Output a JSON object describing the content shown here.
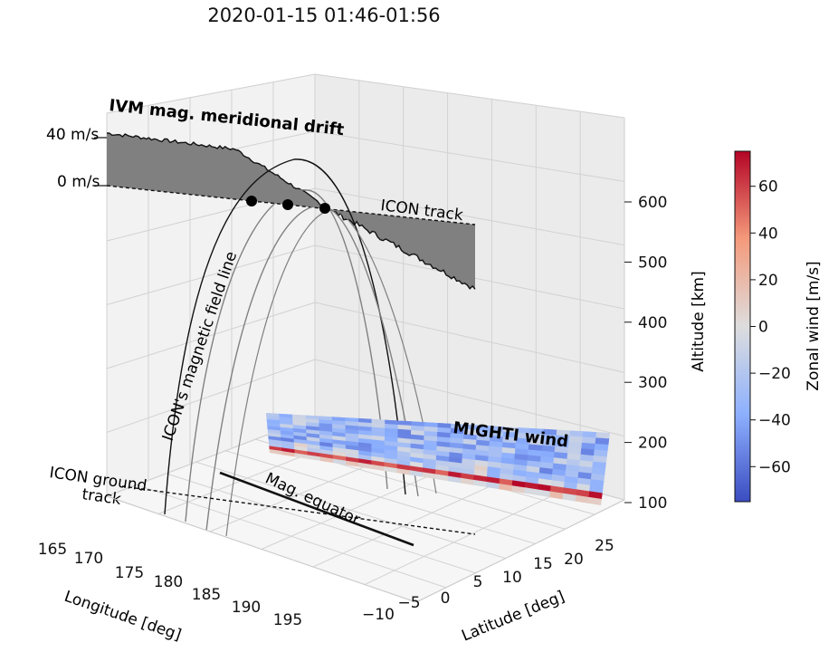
{
  "title": "2020-01-15  01:46-01:56",
  "chart_data": {
    "type": "3d-line",
    "title": "2020-01-15  01:46-01:56",
    "axes": {
      "longitude": {
        "label": "Longitude [deg]",
        "ticks": [
          "165",
          "170",
          "175",
          "180",
          "185",
          "190",
          "195"
        ],
        "range": [
          165,
          195
        ]
      },
      "latitude": {
        "label": "Latitude [deg]",
        "ticks": [
          "−10",
          "−5",
          "0",
          "5",
          "10",
          "15",
          "20",
          "25"
        ],
        "range": [
          -12,
          28
        ]
      },
      "altitude": {
        "label": "Altitude [km]",
        "ticks": [
          "100",
          "200",
          "300",
          "400",
          "500",
          "600"
        ],
        "range": [
          90,
          680
        ]
      }
    },
    "drift_panel": {
      "label": "IVM mag. meridional drift",
      "scale_labels": [
        "40 m/s",
        "0 m/s"
      ],
      "units": "m/s",
      "max_value_approx": 35,
      "min_value_approx": -12
    },
    "annotations": {
      "icon_track": "ICON track",
      "field_line": "ICON's magnetic field line",
      "ground_track": "ICON ground\ntrack",
      "mag_equator": "Mag. equator",
      "mighti": "MIGHTI wind"
    },
    "field_line_footpoints_count": 3,
    "colorbar": {
      "label": "Zonal wind [m/s]",
      "ticks": [
        "60",
        "40",
        "20",
        "0",
        "−20",
        "−40",
        "−60"
      ],
      "range": [
        -75,
        75
      ],
      "colormap": "coolwarm"
    }
  }
}
